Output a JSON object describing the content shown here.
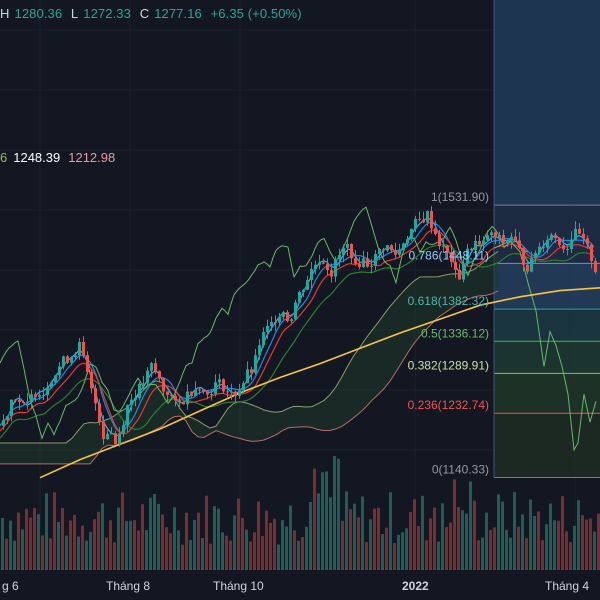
{
  "legend": {
    "h_label": "H",
    "h_value": "1280.36",
    "l_label": "L",
    "l_value": "1272.33",
    "c_label": "C",
    "c_value": "1277.16",
    "change": "+6.35 (+0.50%)",
    "ichimoku_partial": "6",
    "ichimoku_v1": "1248.39",
    "ichimoku_v2": "1212.98"
  },
  "colors": {
    "background": "#131722",
    "up": "#26a69a",
    "down": "#ef5350",
    "ma200": "#f5c542",
    "chikou": "#66bb6a",
    "fib_zone_top": "#2e4a6e",
    "fib_zone_bottom": "#5a2024"
  },
  "chart_data": {
    "type": "line",
    "subtype": "candlestick with Ichimoku, moving averages, volume and Fibonacci retracement",
    "x_tick_labels": [
      "g 6",
      "Tháng 8",
      "Tháng 10",
      "2022",
      "Tháng 4"
    ],
    "fibonacci": [
      {
        "level": "1",
        "value": 1531.9,
        "text": "1(1531.90)"
      },
      {
        "level": "0.786",
        "value": 1448.11,
        "text": "0.786(1448.11)"
      },
      {
        "level": "0.618",
        "value": 1382.32,
        "text": "0.618(1382.32)"
      },
      {
        "level": "0.5",
        "value": 1336.12,
        "text": "0.5(1336.12)"
      },
      {
        "level": "0.382",
        "value": 1289.91,
        "text": "0.382(1289.91)"
      },
      {
        "level": "0.236",
        "value": 1232.74,
        "text": "0.236(1232.74)"
      },
      {
        "level": "0",
        "value": 1140.33,
        "text": "0(1140.33)"
      }
    ],
    "price_path": [
      [
        0,
        1215
      ],
      [
        6,
        1235
      ],
      [
        12,
        1262
      ],
      [
        18,
        1250
      ],
      [
        24,
        1238
      ],
      [
        30,
        1256
      ],
      [
        36,
        1268
      ],
      [
        42,
        1262
      ],
      [
        48,
        1282
      ],
      [
        54,
        1290
      ],
      [
        60,
        1305
      ],
      [
        66,
        1312
      ],
      [
        72,
        1318
      ],
      [
        78,
        1330
      ],
      [
        84,
        1300
      ],
      [
        90,
        1264
      ],
      [
        96,
        1240
      ],
      [
        102,
        1200
      ],
      [
        108,
        1212
      ],
      [
        114,
        1190
      ],
      [
        120,
        1212
      ],
      [
        126,
        1244
      ],
      [
        132,
        1258
      ],
      [
        138,
        1268
      ],
      [
        144,
        1282
      ],
      [
        150,
        1300
      ],
      [
        156,
        1288
      ],
      [
        162,
        1266
      ],
      [
        168,
        1262
      ],
      [
        174,
        1244
      ],
      [
        180,
        1248
      ],
      [
        186,
        1260
      ],
      [
        192,
        1268
      ],
      [
        198,
        1274
      ],
      [
        204,
        1256
      ],
      [
        210,
        1268
      ],
      [
        216,
        1277
      ],
      [
        222,
        1272
      ],
      [
        228,
        1258
      ],
      [
        234,
        1262
      ],
      [
        240,
        1272
      ],
      [
        246,
        1289
      ],
      [
        252,
        1296
      ],
      [
        258,
        1333
      ],
      [
        264,
        1350
      ],
      [
        270,
        1360
      ],
      [
        276,
        1376
      ],
      [
        282,
        1380
      ],
      [
        288,
        1364
      ],
      [
        294,
        1392
      ],
      [
        300,
        1410
      ],
      [
        306,
        1427
      ],
      [
        312,
        1444
      ],
      [
        318,
        1455
      ],
      [
        324,
        1450
      ],
      [
        330,
        1434
      ],
      [
        336,
        1455
      ],
      [
        342,
        1467
      ],
      [
        348,
        1475
      ],
      [
        354,
        1440
      ],
      [
        360,
        1455
      ],
      [
        366,
        1448
      ],
      [
        372,
        1452
      ],
      [
        378,
        1466
      ],
      [
        384,
        1475
      ],
      [
        390,
        1465
      ],
      [
        396,
        1460
      ],
      [
        402,
        1480
      ],
      [
        408,
        1492
      ],
      [
        414,
        1505
      ],
      [
        420,
        1510
      ],
      [
        426,
        1518
      ],
      [
        432,
        1498
      ],
      [
        438,
        1478
      ],
      [
        444,
        1464
      ],
      [
        450,
        1454
      ],
      [
        456,
        1420
      ],
      [
        462,
        1450
      ],
      [
        468,
        1470
      ],
      [
        474,
        1478
      ],
      [
        480,
        1468
      ],
      [
        486,
        1490
      ],
      [
        492,
        1486
      ],
      [
        498,
        1482
      ],
      [
        504,
        1478
      ],
      [
        510,
        1488
      ],
      [
        516,
        1472
      ],
      [
        522,
        1452
      ],
      [
        528,
        1440
      ],
      [
        534,
        1466
      ],
      [
        540,
        1474
      ],
      [
        546,
        1486
      ],
      [
        552,
        1490
      ],
      [
        558,
        1480
      ],
      [
        564,
        1468
      ],
      [
        570,
        1486
      ],
      [
        576,
        1492
      ],
      [
        582,
        1478
      ],
      [
        588,
        1464
      ],
      [
        594,
        1440
      ]
    ],
    "ma200_path": [
      [
        40,
        1140
      ],
      [
        80,
        1166
      ],
      [
        120,
        1188
      ],
      [
        160,
        1210
      ],
      [
        200,
        1236
      ],
      [
        240,
        1262
      ],
      [
        280,
        1284
      ],
      [
        320,
        1304
      ],
      [
        360,
        1326
      ],
      [
        400,
        1348
      ],
      [
        440,
        1368
      ],
      [
        480,
        1388
      ],
      [
        520,
        1400
      ],
      [
        560,
        1409
      ],
      [
        600,
        1413
      ]
    ]
  }
}
